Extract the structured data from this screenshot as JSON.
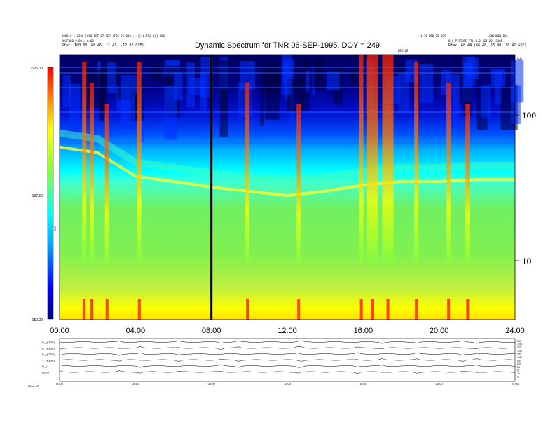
{
  "header": {
    "line1_left": "0000.0 = 1200 [000 RET 07-SEP (TDS 05.000 ...)] 0.TRC 1[] 000",
    "line2_left": "ADJFREQ 0.00 = 0.00",
    "line3_left": "Rfax: 100.83 (68.45, 11.41, -12.82 GSE)",
    "line1_right": "1.10 WED 25-OCT",
    "line1_far_right": "LS050001.001",
    "line2_right": "0.0_PICTURE TTL 0.0 (20,20) 2005",
    "line3_right": "Rfax: 68.44 (66.48, 15.00, 10.41 GSE)",
    "right_axis_small": "kHz",
    "top_small_label": "DEVICE"
  },
  "title": "Dynamic Spectrum for TNR 06-SEP-1995, DOY = 249",
  "chart_data": {
    "type": "heatmap",
    "title": "Dynamic Spectrum for TNR 06-SEP-1995, DOY = 249",
    "colorbar": {
      "min": -150.0,
      "max": -125.0,
      "ticks": [
        "-125.00",
        "-137.50",
        "-150.00"
      ],
      "label": "TNR",
      "colormap": [
        "#000080",
        "#0000ff",
        "#00aaff",
        "#00ffff",
        "#7fff3f",
        "#ffff00",
        "#ff8000",
        "#ff0000"
      ]
    },
    "x": {
      "label": "",
      "ticks": [
        "00:00",
        "04:00",
        "08:00",
        "12:00",
        "16:00",
        "20:00",
        "24:00"
      ],
      "range_hours": [
        0,
        24
      ]
    },
    "y": {
      "label": "kHz",
      "scale": "log",
      "ticks": [
        "100",
        "10"
      ],
      "range_khz": [
        4,
        256
      ]
    },
    "marker_line_hour": 8.0,
    "profile": [
      {
        "hour": 0.0,
        "top_low_khz": 60
      },
      {
        "hour": 2.0,
        "top_low_khz": 55
      },
      {
        "hour": 4.0,
        "top_low_khz": 38
      },
      {
        "hour": 6.0,
        "top_low_khz": 35
      },
      {
        "hour": 8.0,
        "top_low_khz": 32
      },
      {
        "hour": 10.0,
        "top_low_khz": 30
      },
      {
        "hour": 12.0,
        "top_low_khz": 28
      },
      {
        "hour": 14.0,
        "top_low_khz": 30
      },
      {
        "hour": 16.0,
        "top_low_khz": 33
      },
      {
        "hour": 18.0,
        "top_low_khz": 35
      },
      {
        "hour": 20.0,
        "top_low_khz": 35
      },
      {
        "hour": 22.0,
        "top_low_khz": 36
      },
      {
        "hour": 24.0,
        "top_low_khz": 36
      }
    ],
    "bursts_hours": [
      1.3,
      1.7,
      2.5,
      4.2,
      9.9,
      12.6,
      15.9,
      16.5,
      17.3,
      18.8,
      20.5,
      21.5
    ]
  },
  "lower_panels": {
    "row_labels": [
      "B_x(GSE)",
      "B_y(GSE)",
      "B_z(GSE)",
      "V_x(GSE)",
      "N_p",
      "|B|(nT)"
    ],
    "right_labels": [
      "200",
      "-200",
      "200",
      "-200",
      "200",
      "-200",
      "600",
      "200",
      "25",
      "0",
      "10",
      "0"
    ],
    "bottom_label": "Mins. UT",
    "bottom_ticks": [
      "00:00",
      "04:00",
      "08:00",
      "12:00",
      "16:00",
      "20:00",
      "24:00"
    ]
  }
}
